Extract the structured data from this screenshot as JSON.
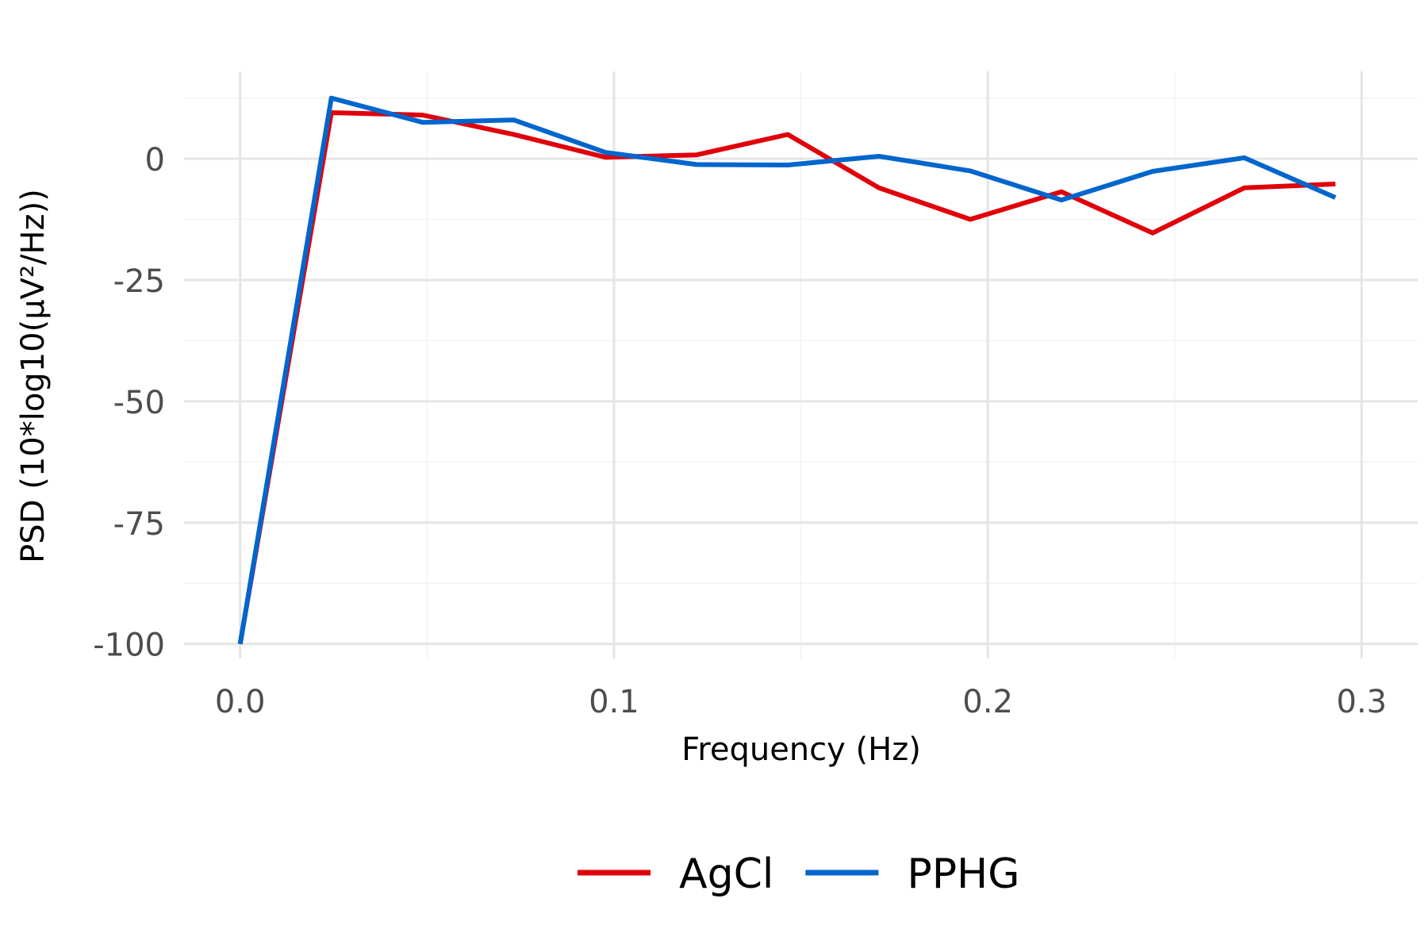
{
  "chart_data": {
    "type": "line",
    "title": "",
    "xlabel": "Frequency (Hz)",
    "ylabel": "PSD (10*log10(µV²/Hz))",
    "xlim": [
      -0.015,
      0.315
    ],
    "ylim": [
      -103,
      18
    ],
    "x_ticks": [
      0.0,
      0.1,
      0.2,
      0.3
    ],
    "x_tick_labels": [
      "0.0",
      "0.1",
      "0.2",
      "0.3"
    ],
    "y_ticks": [
      -100,
      -75,
      -50,
      -25,
      0
    ],
    "y_tick_labels": [
      "-100",
      "-75",
      "-50",
      "-25",
      "0"
    ],
    "grid": true,
    "legend_position": "bottom",
    "series": [
      {
        "name": "AgCl",
        "color": "#e0000b",
        "x": [
          0.0,
          0.0244,
          0.0488,
          0.0732,
          0.0977,
          0.1221,
          0.1465,
          0.1709,
          0.1953,
          0.2197,
          0.2441,
          0.2686,
          0.293
        ],
        "y": [
          -100,
          9.5,
          9,
          5,
          0.3,
          0.8,
          5,
          -6,
          -12.5,
          -6.8,
          -15.3,
          -6,
          -5.2
        ]
      },
      {
        "name": "PPHG",
        "color": "#0066cc",
        "x": [
          0.0,
          0.0244,
          0.0488,
          0.0732,
          0.0977,
          0.1221,
          0.1465,
          0.1709,
          0.1953,
          0.2197,
          0.2441,
          0.2686,
          0.293
        ],
        "y": [
          -100,
          12.5,
          7.5,
          8,
          1.3,
          -1.2,
          -1.3,
          0.5,
          -2.5,
          -8.5,
          -2.6,
          0.2,
          -8
        ]
      }
    ]
  }
}
